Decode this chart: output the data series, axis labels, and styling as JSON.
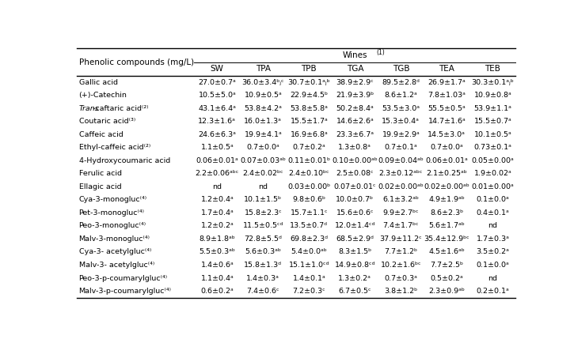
{
  "col_headers": [
    "Phenolic compounds (mg/L)",
    "SW",
    "TPA",
    "TPB",
    "TGA",
    "TGB",
    "TEA",
    "TEB"
  ],
  "rows": [
    [
      "Gallic acid",
      "27.0±0.7ᵃ",
      "36.0±3.4ᵇⱼᶜ",
      "30.7±0.1ᵃⱼᵇ",
      "38.9±2.9ᶜ",
      "89.5±2.8ᵈ",
      "26.9±1.7ᵃ",
      "30.3±0.1ᵃⱼᵇ"
    ],
    [
      "(+)-Catechin",
      "10.5±5.0ᵃ",
      "10.9±0.5ᵃ",
      "22.9±4.5ᵇ",
      "21.9±3.9ᵇ",
      "8.6±1.2ᵃ",
      "7.8±1.03ᵃ",
      "10.9±0.8ᵃ"
    ],
    [
      "Trans-caftaric acid⁽²⁾",
      "43.1±6.4ᵃ",
      "53.8±4.2ᵃ",
      "53.8±5.8ᵃ",
      "50.2±8.4ᵃ",
      "53.5±3.0ᵃ",
      "55.5±0.5ᵃ",
      "53.9±1.1ᵃ"
    ],
    [
      "Coutaric acid⁽³⁾",
      "12.3±1.6ᵃ",
      "16.0±1.3ᵃ",
      "15.5±1.7ᵃ",
      "14.6±2.6ᵃ",
      "15.3±0.4ᵃ",
      "14.7±1.6ᵃ",
      "15.5±0.7ᵃ"
    ],
    [
      "Caffeic acid",
      "24.6±6.3ᵃ",
      "19.9±4.1ᵃ",
      "16.9±6.8ᵃ",
      "23.3±6.7ᵃ",
      "19.9±2.9ᵃ",
      "14.5±3.0ᵃ",
      "10.1±0.5ᵃ"
    ],
    [
      "Ethyl-caffeic acid⁽²⁾",
      "1.1±0.5ᵃ",
      "0.7±0.0ᵃ",
      "0.7±0.2ᵃ",
      "1.3±0.8ᵃ",
      "0.7±0.1ᵃ",
      "0.7±0.0ᵃ",
      "0.73±0.1ᵃ"
    ],
    [
      "4-Hydroxycoumaric acid",
      "0.06±0.01ᵃ",
      "0.07±0.03ᵃᵇ",
      "0.11±0.01ᵇ",
      "0.10±0.00ᵃᵇ",
      "0.09±0.04ᵃᵇ",
      "0.06±0.01ᵃ",
      "0.05±0.00ᵃ"
    ],
    [
      "Ferulic acid",
      "2.2±0.06ᵃᵇᶜ",
      "2.4±0.02ᵇᶜ",
      "2.4±0.10ᵇᶜ",
      "2.5±0.08ᶜ",
      "2.3±0.12ᵃᵇᶜ",
      "2.1±0.25ᵃᵇ",
      "1.9±0.02ᵃ"
    ],
    [
      "Ellagic acid",
      "nd",
      "nd",
      "0.03±0.00ᵇ",
      "0.07±0.01ᶜ",
      "0.02±0.00ᵃᵇ",
      "0.02±0.00ᵃᵇ",
      "0.01±0.00ᵃ"
    ],
    [
      "Cya-3-monogluc⁽⁴⁾",
      "1.2±0.4ᵃ",
      "10.1±1.5ᵇ",
      "9.8±0.6ᵇ",
      "10.0±0.7ᵇ",
      "6.1±3.2ᵃᵇ",
      "4.9±1.9ᵃᵇ",
      "0.1±0.0ᵃ"
    ],
    [
      "Pet-3-monogluc⁽⁴⁾",
      "1.7±0.4ᵃ",
      "15.8±2.3ᶜ",
      "15.7±1.1ᶜ",
      "15.6±0.6ᶜ",
      "9.9±2.7ᵇᶜ",
      "8.6±2.3ᵇ",
      "0.4±0.1ᵃ"
    ],
    [
      "Peo-3-monogluc⁽⁴⁾",
      "1.2±0.2ᵃ",
      "11.5±0.5ᶜᵈ",
      "13.5±0.7ᵈ",
      "12.0±1.4ᶜᵈ",
      "7.4±1.7ᵇᶜ",
      "5.6±1.7ᵃᵇ",
      "nd"
    ],
    [
      "Malv-3-monogluc⁽⁴⁾",
      "8.9±1.8ᵃᵇ",
      "72.8±5.5ᵈ",
      "69.8±2.3ᵈ",
      "68.5±2.9ᵈ",
      "37.9±11.2ᶜ",
      "35.4±12.9ᵇᶜ",
      "1.7±0.3ᵃ"
    ],
    [
      "Cya-3- acetylgluc⁽⁴⁾",
      "5.5±0.3ᵃᵇ",
      "5.6±0.3ᵃᵇ",
      "5.4±0.0ᵃᵇ",
      "8.3±1.5ᵇ",
      "7.7±1.2ᵇ",
      "4.5±1.6ᵃᵇ",
      "3.5±0.2ᵃ"
    ],
    [
      "Malv-3- acetylgluc⁽⁴⁾",
      "1.4±0.6ᵃ",
      "15.8±1.3ᵈ",
      "15.1±1.0ᶜᵈ",
      "14.9±0.8ᶜᵈ",
      "10.2±1.6ᵇᶜ",
      "7.7±2.5ᵇ",
      "0.1±0.0ᵃ"
    ],
    [
      "Peo-3-p-coumarylgluc⁽⁴⁾",
      "1.1±0.4ᵃ",
      "1.4±0.3ᵃ",
      "1.4±0.1ᵃ",
      "1.3±0.2ᵃ",
      "0.7±0.3ᵃ",
      "0.5±0.2ᵃ",
      "nd"
    ],
    [
      "Malv-3-p-coumarylgluc⁽⁴⁾",
      "0.6±0.2ᵃ",
      "7.4±0.6ᶜ",
      "7.2±0.3ᶜ",
      "6.7±0.5ᶜ",
      "3.8±1.2ᵇ",
      "2.3±0.9ᵃᵇ",
      "0.2±0.1ᵃ"
    ]
  ],
  "bg_color": "#ffffff",
  "text_color": "#000000",
  "font_size": 6.8,
  "header_font_size": 7.5,
  "col_widths_rel": [
    2.55,
    1.0,
    1.0,
    1.0,
    1.0,
    1.0,
    1.0,
    1.0
  ]
}
